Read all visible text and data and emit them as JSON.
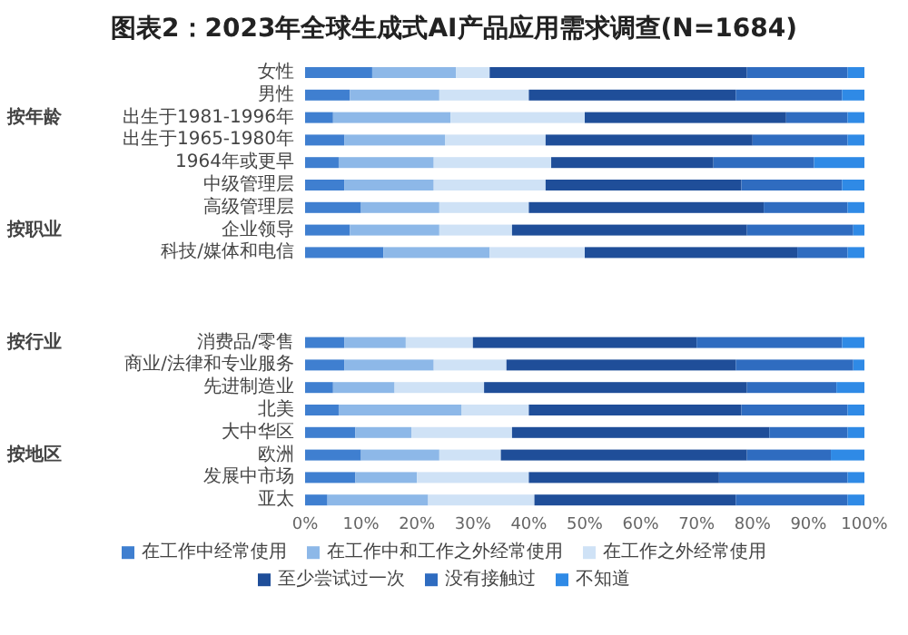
{
  "chart_data": {
    "type": "bar",
    "orientation": "horizontal",
    "stacked": true,
    "title": "图表2：2023年全球生成式AI产品应用需求调查(N=1684)",
    "categories": [
      "女性",
      "男性",
      "出生于1981-1996年",
      "出生于1965-1980年",
      "1964年或更早",
      "中级管理层",
      "高级管理层",
      "企业领导",
      "科技/媒体和电信",
      null,
      null,
      null,
      "消费品/零售",
      "商业/法律和专业服务",
      "先进制造业",
      "北美",
      "大中华区",
      "欧洲",
      "发展中市场",
      "亚太"
    ],
    "series": [
      {
        "name": "在工作中经常使用",
        "color": "#3f7fd0",
        "values": [
          12,
          8,
          5,
          7,
          6,
          7,
          10,
          8,
          14,
          null,
          null,
          null,
          7,
          7,
          5,
          6,
          9,
          10,
          9,
          4
        ]
      },
      {
        "name": "在工作中和工作之外经常使用",
        "color": "#8db8e8",
        "values": [
          15,
          16,
          21,
          18,
          17,
          16,
          14,
          16,
          19,
          null,
          null,
          null,
          11,
          16,
          11,
          22,
          10,
          14,
          11,
          18
        ]
      },
      {
        "name": "在工作之外经常使用",
        "color": "#cfe2f6",
        "values": [
          6,
          16,
          24,
          18,
          21,
          20,
          16,
          13,
          17,
          null,
          null,
          null,
          12,
          13,
          16,
          12,
          18,
          11,
          20,
          19
        ]
      },
      {
        "name": "至少尝试过一次",
        "color": "#1f4e99",
        "values": [
          46,
          37,
          36,
          37,
          29,
          35,
          42,
          42,
          38,
          null,
          null,
          null,
          40,
          41,
          47,
          38,
          46,
          44,
          34,
          36
        ]
      },
      {
        "name": "没有接触过",
        "color": "#2f6cc0",
        "values": [
          18,
          19,
          11,
          17,
          18,
          18,
          15,
          19,
          9,
          null,
          null,
          null,
          26,
          21,
          16,
          19,
          14,
          15,
          23,
          20
        ]
      },
      {
        "name": "不知道",
        "color": "#2f8ae6",
        "values": [
          3,
          4,
          3,
          3,
          9,
          4,
          3,
          2,
          3,
          null,
          null,
          null,
          4,
          2,
          5,
          3,
          3,
          6,
          3,
          3
        ]
      }
    ],
    "xlim": [
      0,
      100
    ],
    "xticks": [
      {
        "value": 0,
        "label": "0%"
      },
      {
        "value": 10,
        "label": "10%"
      },
      {
        "value": 20,
        "label": "20%"
      },
      {
        "value": 30,
        "label": "30%"
      },
      {
        "value": 40,
        "label": "40%"
      },
      {
        "value": 50,
        "label": "50%"
      },
      {
        "value": 60,
        "label": "60%"
      },
      {
        "value": 70,
        "label": "70%"
      },
      {
        "value": 80,
        "label": "80%"
      },
      {
        "value": 90,
        "label": "90%"
      },
      {
        "value": 100,
        "label": "100%"
      }
    ],
    "legend": "bottom",
    "annotations": [
      "按年龄",
      "按职业",
      "按行业",
      "按地区"
    ]
  }
}
